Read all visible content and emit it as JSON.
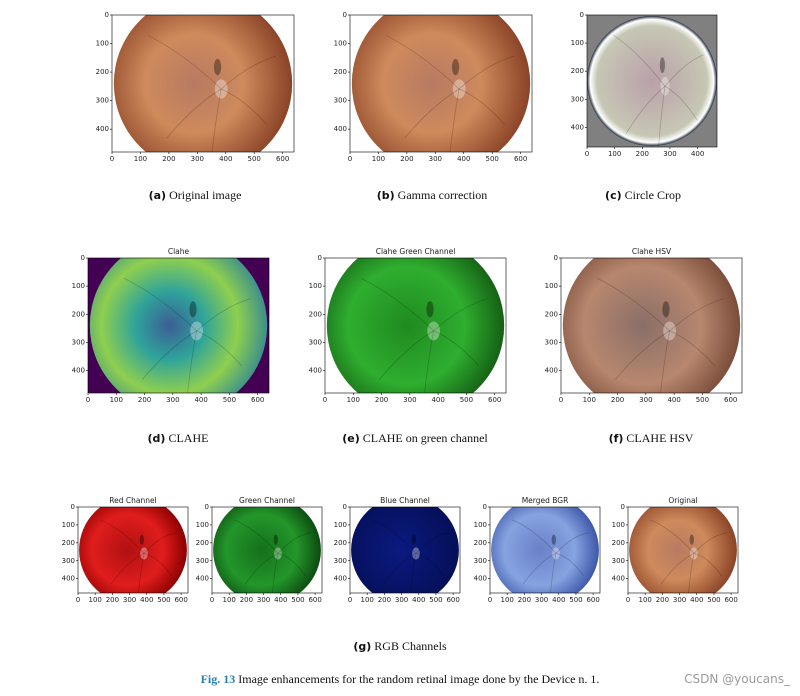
{
  "panels": [
    {
      "xticks": [
        "0",
        "100",
        "200",
        "300",
        "400",
        "500",
        "600"
      ],
      "yticks": [
        "0",
        "100",
        "200",
        "300",
        "400"
      ]
    },
    {
      "xticks": [
        "0",
        "100",
        "200",
        "300",
        "400",
        "500",
        "600"
      ],
      "yticks": [
        "0",
        "100",
        "200",
        "300",
        "400"
      ]
    },
    {
      "xticks": [
        "0",
        "100",
        "200",
        "300",
        "400"
      ],
      "yticks": [
        "0",
        "100",
        "200",
        "300",
        "400"
      ]
    },
    {
      "title": "Clahe",
      "xticks": [
        "0",
        "100",
        "200",
        "300",
        "400",
        "500",
        "600"
      ],
      "yticks": [
        "0",
        "100",
        "200",
        "300",
        "400"
      ]
    },
    {
      "title": "Clahe Green Channel",
      "xticks": [
        "0",
        "100",
        "200",
        "300",
        "400",
        "500",
        "600"
      ],
      "yticks": [
        "0",
        "100",
        "200",
        "300",
        "400"
      ]
    },
    {
      "title": "Clahe HSV",
      "xticks": [
        "0",
        "100",
        "200",
        "300",
        "400",
        "500",
        "600"
      ],
      "yticks": [
        "0",
        "100",
        "200",
        "300",
        "400"
      ]
    },
    {
      "title": "Red Channel",
      "xticks": [
        "0",
        "100",
        "200",
        "300",
        "400",
        "500",
        "600"
      ],
      "yticks": [
        "0",
        "100",
        "200",
        "300",
        "400"
      ]
    },
    {
      "title": "Green Channel",
      "xticks": [
        "0",
        "100",
        "200",
        "300",
        "400",
        "500",
        "600"
      ],
      "yticks": [
        "0",
        "100",
        "200",
        "300",
        "400"
      ]
    },
    {
      "title": "Blue Channel",
      "xticks": [
        "0",
        "100",
        "200",
        "300",
        "400",
        "500",
        "600"
      ],
      "yticks": [
        "0",
        "100",
        "200",
        "300",
        "400"
      ]
    },
    {
      "title": "Merged BGR",
      "xticks": [
        "0",
        "100",
        "200",
        "300",
        "400",
        "500",
        "600"
      ],
      "yticks": [
        "0",
        "100",
        "200",
        "300",
        "400"
      ]
    },
    {
      "title": "Original",
      "xticks": [
        "0",
        "100",
        "200",
        "300",
        "400",
        "500",
        "600"
      ],
      "yticks": [
        "0",
        "100",
        "200",
        "300",
        "400"
      ]
    }
  ],
  "captions": [
    {
      "label": "(a)",
      "text": "Original image"
    },
    {
      "label": "(b)",
      "text": "Gamma correction"
    },
    {
      "label": "(c)",
      "text": "Circle Crop"
    },
    {
      "label": "(d)",
      "text": "CLAHE"
    },
    {
      "label": "(e)",
      "text": "CLAHE on green channel"
    },
    {
      "label": "(f)",
      "text": "CLAHE HSV"
    },
    {
      "label": "(g)",
      "text": "RGB Channels"
    }
  ],
  "figure_caption": {
    "label": "Fig. 13",
    "text": "Image enhancements for the random retinal image done by the Device n. 1."
  },
  "watermark": "CSDN @youcans_"
}
